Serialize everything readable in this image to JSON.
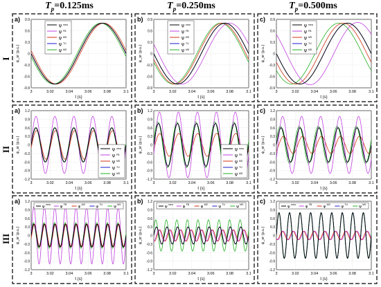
{
  "columns": [
    {
      "prefix": "T",
      "sub": "p",
      "value": "=0.125ms"
    },
    {
      "prefix": "T",
      "sub": "p",
      "value": "=0.250ms"
    },
    {
      "prefix": "T",
      "sub": "p",
      "value": "=0.500ms"
    }
  ],
  "rows": [
    "I",
    "II",
    "III"
  ],
  "colors": {
    "mea": "#000000",
    "FB": "#c040e0",
    "MS": "#d03010",
    "TU": "#1818d0",
    "MS2": "#20b020"
  },
  "legend_labels": {
    "mea": "mea",
    "FB": "FB",
    "MS": "MS",
    "TU": "TU",
    "MS2": "MS"
  },
  "chart_data": [
    {
      "type": "line",
      "panel": "a)",
      "row": "I",
      "col": "T_p=0.125ms",
      "xlabel": "t (s)",
      "ylabel": "ψ_sr (p.u.)",
      "xlim": [
        3,
        3.1
      ],
      "ylim": [
        -0.9,
        0.9
      ],
      "xticks": [
        "3",
        "3.02",
        "3.04",
        "3.06",
        "3.08",
        "3.1"
      ],
      "yticks": [
        "-0.9",
        "-0.6",
        "-0.3",
        "0",
        "0.3",
        "0.6",
        "0.9"
      ],
      "legend": "top-left",
      "grid": true,
      "series": [
        {
          "name": "mea",
          "amp": 0.8,
          "freq": 10,
          "phase": -3.14
        },
        {
          "name": "FB",
          "amp": 0.8,
          "freq": 10,
          "phase": -3.14
        },
        {
          "name": "MS",
          "amp": 0.8,
          "freq": 10,
          "phase": -3.24
        },
        {
          "name": "TU",
          "amp": 0.8,
          "freq": 10,
          "phase": -3.14
        },
        {
          "name": "MS",
          "amp": 0.8,
          "freq": 10,
          "phase": -3.04
        }
      ]
    },
    {
      "type": "line",
      "panel": "b)",
      "row": "I",
      "col": "T_p=0.250ms",
      "xlabel": "t (s)",
      "ylabel": "ψ_sr (p.u.)",
      "xlim": [
        3,
        3.1
      ],
      "ylim": [
        -0.9,
        0.9
      ],
      "xticks": [
        "3",
        "3.02",
        "3.04",
        "3.06",
        "3.08",
        "3.1"
      ],
      "yticks": [
        "-0.9",
        "-0.6",
        "-0.3",
        "0",
        "0.3",
        "0.6",
        "0.9"
      ],
      "legend": "top-left",
      "grid": true,
      "series": [
        {
          "name": "mea",
          "amp": 0.8,
          "freq": 10,
          "phase": -3.14
        },
        {
          "name": "FB",
          "amp": 0.8,
          "freq": 10,
          "phase": -3.45
        },
        {
          "name": "MS",
          "amp": 0.8,
          "freq": 10,
          "phase": -2.95
        },
        {
          "name": "TU",
          "amp": 0.8,
          "freq": 10,
          "phase": -3.14
        },
        {
          "name": "MS",
          "amp": 0.8,
          "freq": 10,
          "phase": -2.85
        }
      ]
    },
    {
      "type": "line",
      "panel": "c)",
      "row": "I",
      "col": "T_p=0.500ms",
      "xlabel": "t (s)",
      "ylabel": "ψ_sr (p.u.)",
      "xlim": [
        3,
        3.1
      ],
      "ylim": [
        -0.9,
        0.9
      ],
      "xticks": [
        "3",
        "3.02",
        "3.04",
        "3.06",
        "3.08",
        "3.1"
      ],
      "yticks": [
        "-0.9",
        "-0.6",
        "-0.3",
        "0",
        "0.3",
        "0.6",
        "0.9"
      ],
      "legend": "top-left",
      "grid": true,
      "series": [
        {
          "name": "mea",
          "amp": 0.8,
          "freq": 10,
          "phase": -3.14
        },
        {
          "name": "FB",
          "amp": 0.82,
          "freq": 10,
          "phase": -3.8
        },
        {
          "name": "MS",
          "amp": 0.8,
          "freq": 10,
          "phase": -2.85
        },
        {
          "name": "TU",
          "amp": 0.8,
          "freq": 10,
          "phase": -3.14
        },
        {
          "name": "MS",
          "amp": 0.8,
          "freq": 10,
          "phase": -2.55
        }
      ]
    },
    {
      "type": "line",
      "panel": "a)",
      "row": "II",
      "col": "T_p=0.125ms",
      "xlabel": "t (s)",
      "ylabel": "ψ_sr (p.u.)",
      "xlim": [
        3,
        3.1
      ],
      "ylim": [
        -1.2,
        1.2
      ],
      "xticks": [
        "3",
        "3.02",
        "3.04",
        "3.06",
        "3.08",
        "3.1"
      ],
      "yticks": [
        "-1.2",
        "-0.9",
        "-0.6",
        "-0.3",
        "0",
        "0.3",
        "0.6",
        "0.9",
        "1.2"
      ],
      "legend": "bottom-right",
      "grid": true,
      "series": [
        {
          "name": "mea",
          "amp": 0.6,
          "freq": 50,
          "phase": 0.0
        },
        {
          "name": "FB",
          "amp": 1.0,
          "freq": 50,
          "phase": 0.0
        },
        {
          "name": "MS",
          "amp": 0.5,
          "freq": 50,
          "phase": -0.2
        },
        {
          "name": "TU",
          "amp": 0.6,
          "freq": 50,
          "phase": 0.0
        },
        {
          "name": "MS",
          "amp": 0.6,
          "freq": 50,
          "phase": 0.1
        }
      ]
    },
    {
      "type": "line",
      "panel": "b)",
      "row": "II",
      "col": "T_p=0.250ms",
      "xlabel": "t (s)",
      "ylabel": "ψ_sr (p.u.)",
      "xlim": [
        3,
        3.1
      ],
      "ylim": [
        -1.2,
        1.2
      ],
      "xticks": [
        "3",
        "3.02",
        "3.04",
        "3.06",
        "3.08",
        "3.1"
      ],
      "yticks": [
        "-1.2",
        "-0.9",
        "-0.6",
        "-0.3",
        "0",
        "0.3",
        "0.6",
        "0.9",
        "1.2"
      ],
      "legend": "bottom-right",
      "grid": true,
      "series": [
        {
          "name": "mea",
          "amp": 0.75,
          "freq": 50,
          "phase": 0.0
        },
        {
          "name": "FB",
          "amp": 1.15,
          "freq": 50,
          "phase": -0.3
        },
        {
          "name": "MS",
          "amp": 0.4,
          "freq": 50,
          "phase": -0.4
        },
        {
          "name": "TU",
          "amp": 0.75,
          "freq": 50,
          "phase": 0.0
        },
        {
          "name": "MS",
          "amp": 0.8,
          "freq": 50,
          "phase": 0.2
        }
      ]
    },
    {
      "type": "line",
      "panel": "c)",
      "row": "II",
      "col": "T_p=0.500ms",
      "xlabel": "t (s)",
      "ylabel": "ψ_sr (p.u.)",
      "xlim": [
        3,
        3.1
      ],
      "ylim": [
        -1.2,
        1.2
      ],
      "xticks": [
        "3",
        "3.02",
        "3.04",
        "3.06",
        "3.08",
        "3.1"
      ],
      "yticks": [
        "-1.2",
        "-0.9",
        "-0.6",
        "-0.3",
        "0",
        "0.3",
        "0.6",
        "0.9",
        "1.2"
      ],
      "legend": "none",
      "grid": true,
      "series": [
        {
          "name": "mea",
          "amp": 0.6,
          "freq": 50,
          "phase": 0.0
        },
        {
          "name": "FB",
          "amp": 1.0,
          "freq": 50,
          "phase": -0.5
        },
        {
          "name": "MS",
          "amp": 0.3,
          "freq": 50,
          "phase": -0.8
        },
        {
          "name": "TU",
          "amp": 0.6,
          "freq": 50,
          "phase": 0.0
        },
        {
          "name": "MS",
          "amp": 0.65,
          "freq": 50,
          "phase": 0.3
        }
      ]
    },
    {
      "type": "line",
      "panel": "a)",
      "row": "III",
      "col": "T_p=0.125ms",
      "xlabel": "t (s)",
      "ylabel": "ψ_sr (p.u.)",
      "xlim": [
        3,
        3.1
      ],
      "ylim": [
        -1.2,
        1.2
      ],
      "xticks": [
        "3",
        "3.02",
        "3.04",
        "3.06",
        "3.08",
        "3.1"
      ],
      "yticks": [
        "-1.2",
        "-0.9",
        "-0.6",
        "-0.3",
        "0",
        "0.3",
        "0.6",
        "0.9",
        "1.2"
      ],
      "legend": "top",
      "grid": true,
      "series": [
        {
          "name": "mea",
          "amp": 0.4,
          "freq": 90,
          "phase": 0.0
        },
        {
          "name": "FB",
          "amp": 1.0,
          "freq": 90,
          "phase": 0.0
        },
        {
          "name": "MS",
          "amp": 0.4,
          "freq": 90,
          "phase": -0.3
        },
        {
          "name": "TU",
          "amp": 0.4,
          "freq": 90,
          "phase": 0.0
        },
        {
          "name": "MS",
          "amp": 0.45,
          "freq": 90,
          "phase": 0.2
        }
      ]
    },
    {
      "type": "line",
      "panel": "b)",
      "row": "III",
      "col": "T_p=0.250ms",
      "xlabel": "t (s)",
      "ylabel": "ψ_sr (p.u.)",
      "xlim": [
        3,
        3.1
      ],
      "ylim": [
        -1.2,
        1.2
      ],
      "xticks": [
        "3",
        "3.02",
        "3.04",
        "3.06",
        "3.08",
        "3.1"
      ],
      "yticks": [
        "-1.2",
        "-0.9",
        "-0.6",
        "-0.3",
        "0",
        "0.3",
        "0.6",
        "0.9",
        "1.2"
      ],
      "legend": "top",
      "grid": true,
      "series": [
        {
          "name": "mea",
          "amp": 0.3,
          "freq": 90,
          "phase": 0.0
        },
        {
          "name": "FB",
          "amp": 0.2,
          "freq": 90,
          "phase": -1.5
        },
        {
          "name": "MS",
          "amp": 0.2,
          "freq": 90,
          "phase": -2.0
        },
        {
          "name": "TU",
          "amp": 0.3,
          "freq": 90,
          "phase": 0.0
        },
        {
          "name": "MS",
          "amp": 0.55,
          "freq": 90,
          "phase": 0.4
        }
      ]
    },
    {
      "type": "line",
      "panel": "c)",
      "row": "III",
      "col": "T_p=0.500ms",
      "xlabel": "t (s)",
      "ylabel": "ψ_sr (p.u.)",
      "xlim": [
        3,
        3.1
      ],
      "ylim": [
        -1.2,
        1.2
      ],
      "xticks": [
        "3",
        "3.02",
        "3.04",
        "3.06",
        "3.08",
        "3.1"
      ],
      "yticks": [
        "-1.2",
        "-0.9",
        "-0.6",
        "-0.3",
        "0",
        "0.3",
        "0.6",
        "0.9",
        "1.2"
      ],
      "legend": "top",
      "grid": true,
      "series": [
        {
          "name": "mea",
          "amp": 0.8,
          "freq": 90,
          "phase": 0.0
        },
        {
          "name": "FB",
          "amp": 0.15,
          "freq": 90,
          "phase": -2.5
        },
        {
          "name": "MS",
          "amp": 0.15,
          "freq": 90,
          "phase": -2.0
        },
        {
          "name": "TU",
          "amp": 0.8,
          "freq": 90,
          "phase": 0.0
        },
        {
          "name": "MS",
          "amp": 0.8,
          "freq": 90,
          "phase": 0.1
        }
      ]
    }
  ]
}
